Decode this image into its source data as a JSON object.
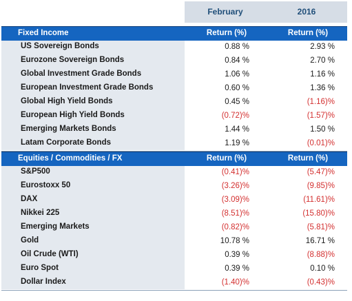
{
  "header": {
    "col1": "February",
    "col2": "2016"
  },
  "sections": [
    {
      "title": "Fixed Income",
      "col1": "Return (%)",
      "col2": "Return (%)",
      "rows": [
        {
          "label": "US Sovereign Bonds",
          "v1": "0.88 %",
          "v2": "2.93 %",
          "neg1": false,
          "neg2": false
        },
        {
          "label": "Eurozone Sovereign Bonds",
          "v1": "0.84 %",
          "v2": "2.70 %",
          "neg1": false,
          "neg2": false
        },
        {
          "label": "Global Investment Grade Bonds",
          "v1": "1.06 %",
          "v2": "1.16 %",
          "neg1": false,
          "neg2": false
        },
        {
          "label": "European Investment Grade Bonds",
          "v1": "0.60 %",
          "v2": "1.36 %",
          "neg1": false,
          "neg2": false
        },
        {
          "label": "Global High Yield Bonds",
          "v1": "0.45 %",
          "v2": "(1.16)%",
          "neg1": false,
          "neg2": true
        },
        {
          "label": "European High Yield Bonds",
          "v1": "(0.72)%",
          "v2": "(1.57)%",
          "neg1": true,
          "neg2": true
        },
        {
          "label": "Emerging Markets Bonds",
          "v1": "1.44 %",
          "v2": "1.50 %",
          "neg1": false,
          "neg2": false
        },
        {
          "label": "Latam Corporate Bonds",
          "v1": "1.19 %",
          "v2": "(0.01)%",
          "neg1": false,
          "neg2": true
        }
      ]
    },
    {
      "title": "Equities / Commodities / FX",
      "col1": "Return (%)",
      "col2": "Return (%)",
      "rows": [
        {
          "label": "S&P500",
          "v1": "(0.41)%",
          "v2": "(5.47)%",
          "neg1": true,
          "neg2": true
        },
        {
          "label": "Eurostoxx 50",
          "v1": "(3.26)%",
          "v2": "(9.85)%",
          "neg1": true,
          "neg2": true
        },
        {
          "label": "DAX",
          "v1": "(3.09)%",
          "v2": "(11.61)%",
          "neg1": true,
          "neg2": true
        },
        {
          "label": "Nikkei 225",
          "v1": "(8.51)%",
          "v2": "(15.80)%",
          "neg1": true,
          "neg2": true
        },
        {
          "label": "Emerging Markets",
          "v1": "(0.82)%",
          "v2": "(5.81)%",
          "neg1": true,
          "neg2": true
        },
        {
          "label": "Gold",
          "v1": "10.78 %",
          "v2": "16.71 %",
          "neg1": false,
          "neg2": false
        },
        {
          "label": "Oil Crude (WTI)",
          "v1": "0.39 %",
          "v2": "(8.88)%",
          "neg1": false,
          "neg2": true
        },
        {
          "label": "Euro Spot",
          "v1": "0.39 %",
          "v2": "0.10 %",
          "neg1": false,
          "neg2": false
        },
        {
          "label": "Dollar Index",
          "v1": "(1.40)%",
          "v2": "(0.43)%",
          "neg1": true,
          "neg2": true
        }
      ]
    }
  ]
}
